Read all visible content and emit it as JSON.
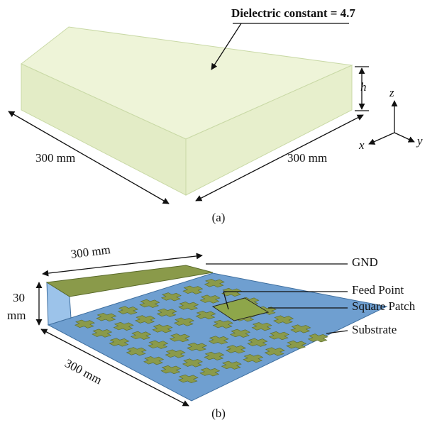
{
  "figure_a": {
    "annotation": "Dielectric constant = 4.7",
    "height_label": "h",
    "axes": {
      "z": "z",
      "x": "x",
      "y": "y"
    },
    "width_label": "300 mm",
    "depth_label": "300 mm",
    "caption": "(a)"
  },
  "figure_b": {
    "width_label": "300 mm",
    "height_label": [
      "30",
      "mm"
    ],
    "depth_label": "300 mm",
    "labels": [
      "GND",
      "Feed Point",
      "Square Patch",
      "Substrate"
    ],
    "caption": "(b)"
  }
}
